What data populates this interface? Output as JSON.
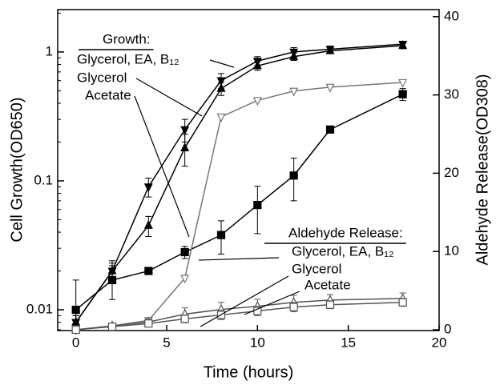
{
  "chart_data": {
    "type": "line",
    "xlabel": "Time (hours)",
    "ylabel": "Cell Growth(OD650)",
    "y2label": "Aldehyde Release(OD308)",
    "yscale": "log",
    "xlim": [
      -1,
      20
    ],
    "xticks": [
      0,
      5,
      10,
      15,
      20
    ],
    "ylim": [
      0.0069,
      2.13
    ],
    "yticks": [
      0.01,
      0.1,
      1
    ],
    "y2lim": [
      -0.1,
      40.9
    ],
    "y2ticks": [
      0,
      10,
      20,
      30,
      40
    ],
    "annotations": [
      "Growth:",
      "Aldehyde Release:"
    ],
    "x": [
      0,
      2,
      4,
      6,
      8,
      10,
      12,
      14,
      18
    ],
    "series": [
      {
        "name": "Glycerol, EA, B₁₂",
        "color": "#000000",
        "marker": "triangle-down",
        "filled": true,
        "values": [
          0.008,
          0.02,
          0.09,
          0.25,
          0.6,
          0.85,
          1.0,
          1.05,
          1.15
        ],
        "errors": [
          0.001,
          0.004,
          0.015,
          0.05,
          0.08,
          0.07,
          0.08,
          0.06,
          0.06
        ]
      },
      {
        "name": "Glycerol",
        "color": "#000000",
        "marker": "triangle-up",
        "filled": true,
        "values": [
          0.008,
          0.02,
          0.045,
          0.18,
          0.52,
          0.78,
          0.92,
          1.02,
          1.12
        ],
        "errors": [
          0.001,
          0.003,
          0.008,
          0.05,
          0.06,
          0.06,
          0.06,
          0.05,
          0.06
        ]
      },
      {
        "name": "Acetate",
        "color": "#000000",
        "marker": "square",
        "filled": true,
        "values": [
          0.01,
          0.017,
          0.02,
          0.028,
          0.038,
          0.065,
          0.11,
          0.25,
          0.47
        ],
        "errors": [
          0.007,
          0.005,
          null,
          0.003,
          0.011,
          0.026,
          0.04,
          null,
          0.05
        ]
      },
      {
        "name": "Glycerol, EA, B₁₂",
        "color": "#777777",
        "marker": "triangle-down",
        "filled": false,
        "axis": "y2",
        "values": [
          0,
          0.5,
          1.2,
          6.6,
          27.2,
          29.3,
          30.5,
          31,
          31.6
        ],
        "errors": [
          null,
          null,
          null,
          null,
          null,
          null,
          null,
          null,
          null
        ]
      },
      {
        "name": "Glycerol",
        "color": "#555555",
        "marker": "triangle-up",
        "filled": false,
        "axis": "y2",
        "values": [
          0,
          0.5,
          1,
          2,
          2.6,
          3,
          3.5,
          3.8,
          4
        ],
        "errors": [
          null,
          0.3,
          0.4,
          0.8,
          0.9,
          0.9,
          0.9,
          0.7,
          0.7
        ]
      },
      {
        "name": "Acetate",
        "color": "#555555",
        "marker": "square",
        "filled": false,
        "axis": "y2",
        "values": [
          0,
          0.4,
          0.8,
          1.4,
          1.9,
          2.4,
          2.9,
          3.2,
          3.5
        ],
        "errors": [
          null,
          0.3,
          0.3,
          0.5,
          0.6,
          0.6,
          0.6,
          0.5,
          0.5
        ]
      }
    ]
  }
}
